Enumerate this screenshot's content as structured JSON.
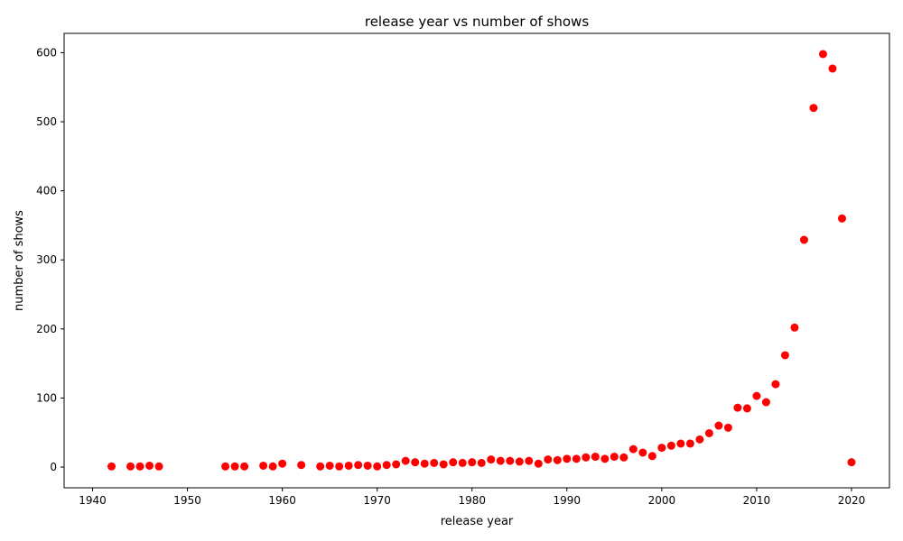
{
  "chart_data": {
    "type": "scatter",
    "title": "release year vs number of shows",
    "xlabel": "release year",
    "ylabel": "number of  shows",
    "xlim": [
      1937,
      2024
    ],
    "ylim": [
      -30,
      628
    ],
    "x_ticks": [
      1940,
      1950,
      1960,
      1970,
      1980,
      1990,
      2000,
      2010,
      2020
    ],
    "y_ticks": [
      0,
      100,
      200,
      300,
      400,
      500,
      600
    ],
    "grid": false,
    "marker_color": "#ff0000",
    "x": [
      1942,
      1944,
      1945,
      1946,
      1947,
      1954,
      1955,
      1956,
      1958,
      1959,
      1960,
      1962,
      1964,
      1965,
      1966,
      1967,
      1968,
      1969,
      1970,
      1971,
      1972,
      1973,
      1974,
      1975,
      1976,
      1977,
      1978,
      1979,
      1980,
      1981,
      1982,
      1983,
      1984,
      1985,
      1986,
      1987,
      1988,
      1989,
      1990,
      1991,
      1992,
      1993,
      1994,
      1995,
      1996,
      1997,
      1998,
      1999,
      2000,
      2001,
      2002,
      2003,
      2004,
      2005,
      2006,
      2007,
      2008,
      2009,
      2010,
      2011,
      2012,
      2013,
      2014,
      2015,
      2016,
      2017,
      2018,
      2019,
      2020
    ],
    "y": [
      1,
      1,
      1,
      2,
      1,
      1,
      1,
      1,
      2,
      1,
      5,
      3,
      1,
      2,
      1,
      2,
      3,
      2,
      1,
      3,
      4,
      9,
      7,
      5,
      6,
      4,
      7,
      6,
      7,
      6,
      11,
      9,
      9,
      8,
      9,
      5,
      11,
      10,
      12,
      12,
      14,
      15,
      12,
      15,
      14,
      26,
      21,
      16,
      28,
      31,
      34,
      34,
      40,
      49,
      60,
      57,
      86,
      85,
      103,
      94,
      120,
      162,
      202,
      329,
      520,
      598,
      577,
      360,
      7
    ]
  }
}
